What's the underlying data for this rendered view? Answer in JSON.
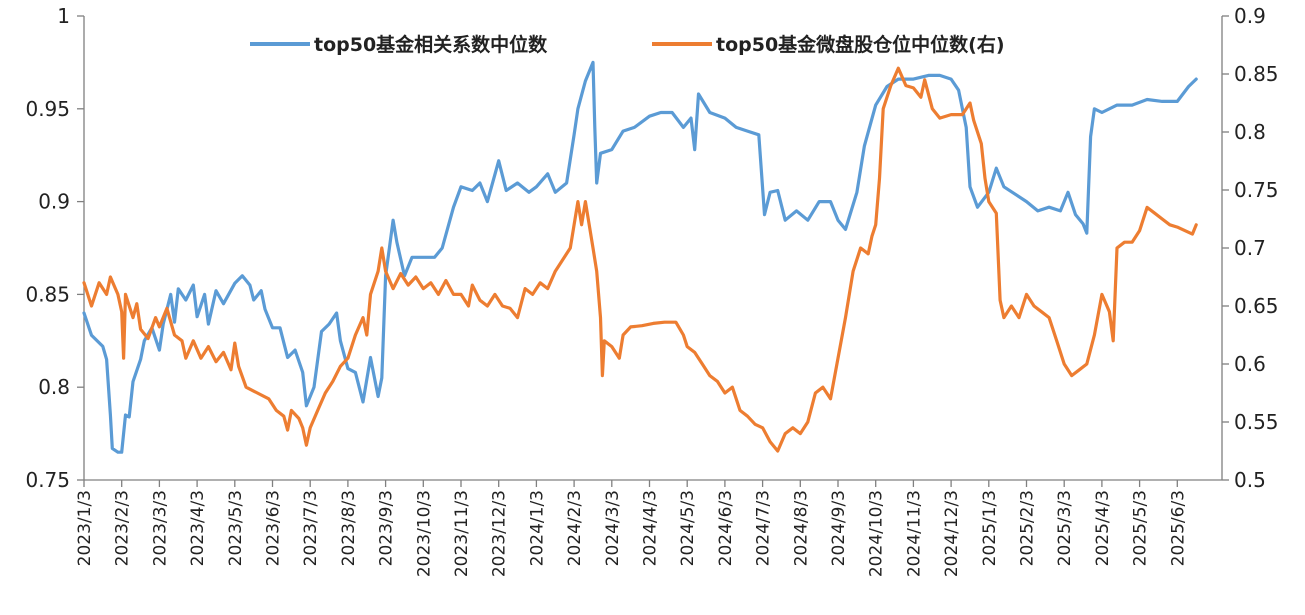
{
  "chart_data": {
    "type": "line",
    "colors": {
      "left_series": "#5b9bd5",
      "right_series": "#ed7d31",
      "axis": "#808080"
    },
    "legend_placement": "top-center",
    "grid": false,
    "y_left": {
      "min": 0.75,
      "max": 1.0,
      "ticks": [
        "0.75",
        "0.8",
        "0.85",
        "0.9",
        "0.95",
        "1"
      ]
    },
    "y_right": {
      "min": 0.5,
      "max": 0.9,
      "ticks": [
        "0.5",
        "0.55",
        "0.6",
        "0.65",
        "0.7",
        "0.75",
        "0.8",
        "0.85",
        "0.9"
      ]
    },
    "x_tick_labels": [
      "2023/1/3",
      "2023/2/3",
      "2023/3/3",
      "2023/4/3",
      "2023/5/3",
      "2023/6/3",
      "2023/7/3",
      "2023/8/3",
      "2023/9/3",
      "2023/10/3",
      "2023/11/3",
      "2023/12/3",
      "2024/1/3",
      "2024/2/3",
      "2024/3/3",
      "2024/4/3",
      "2024/5/3",
      "2024/6/3",
      "2024/7/3",
      "2024/8/3",
      "2024/9/3",
      "2024/10/3",
      "2024/11/3",
      "2024/12/3",
      "2025/1/3",
      "2025/2/3",
      "2025/3/3",
      "2025/4/3",
      "2025/5/3",
      "2025/6/3"
    ],
    "series": [
      {
        "name": "top50基金相关系数中位数",
        "axis": "left",
        "points": [
          [
            0,
            0.84
          ],
          [
            0.2,
            0.828
          ],
          [
            0.5,
            0.822
          ],
          [
            0.6,
            0.815
          ],
          [
            0.7,
            0.785
          ],
          [
            0.75,
            0.767
          ],
          [
            0.9,
            0.765
          ],
          [
            1.0,
            0.765
          ],
          [
            1.1,
            0.785
          ],
          [
            1.2,
            0.784
          ],
          [
            1.3,
            0.803
          ],
          [
            1.5,
            0.815
          ],
          [
            1.6,
            0.825
          ],
          [
            1.8,
            0.832
          ],
          [
            2.0,
            0.82
          ],
          [
            2.1,
            0.834
          ],
          [
            2.3,
            0.85
          ],
          [
            2.4,
            0.835
          ],
          [
            2.5,
            0.853
          ],
          [
            2.7,
            0.847
          ],
          [
            2.9,
            0.855
          ],
          [
            3.0,
            0.838
          ],
          [
            3.2,
            0.85
          ],
          [
            3.3,
            0.834
          ],
          [
            3.5,
            0.852
          ],
          [
            3.7,
            0.845
          ],
          [
            4.0,
            0.856
          ],
          [
            4.2,
            0.86
          ],
          [
            4.4,
            0.855
          ],
          [
            4.5,
            0.847
          ],
          [
            4.7,
            0.852
          ],
          [
            4.8,
            0.842
          ],
          [
            5.0,
            0.832
          ],
          [
            5.2,
            0.832
          ],
          [
            5.4,
            0.816
          ],
          [
            5.6,
            0.82
          ],
          [
            5.8,
            0.808
          ],
          [
            5.9,
            0.79
          ],
          [
            6.1,
            0.8
          ],
          [
            6.3,
            0.83
          ],
          [
            6.5,
            0.834
          ],
          [
            6.7,
            0.84
          ],
          [
            6.8,
            0.825
          ],
          [
            7.0,
            0.81
          ],
          [
            7.2,
            0.808
          ],
          [
            7.4,
            0.792
          ],
          [
            7.6,
            0.816
          ],
          [
            7.8,
            0.795
          ],
          [
            7.9,
            0.805
          ],
          [
            8.0,
            0.86
          ],
          [
            8.1,
            0.875
          ],
          [
            8.2,
            0.89
          ],
          [
            8.3,
            0.878
          ],
          [
            8.5,
            0.86
          ],
          [
            8.7,
            0.87
          ],
          [
            9.0,
            0.87
          ],
          [
            9.3,
            0.87
          ],
          [
            9.5,
            0.875
          ],
          [
            9.8,
            0.897
          ],
          [
            10.0,
            0.908
          ],
          [
            10.3,
            0.906
          ],
          [
            10.5,
            0.91
          ],
          [
            10.7,
            0.9
          ],
          [
            11.0,
            0.922
          ],
          [
            11.2,
            0.906
          ],
          [
            11.5,
            0.91
          ],
          [
            11.8,
            0.905
          ],
          [
            12.0,
            0.908
          ],
          [
            12.3,
            0.915
          ],
          [
            12.5,
            0.905
          ],
          [
            12.8,
            0.91
          ],
          [
            13.0,
            0.936
          ],
          [
            13.1,
            0.95
          ],
          [
            13.3,
            0.965
          ],
          [
            13.5,
            0.975
          ],
          [
            13.55,
            0.94
          ],
          [
            13.6,
            0.91
          ],
          [
            13.7,
            0.926
          ],
          [
            14.0,
            0.928
          ],
          [
            14.3,
            0.938
          ],
          [
            14.6,
            0.94
          ],
          [
            15.0,
            0.946
          ],
          [
            15.3,
            0.948
          ],
          [
            15.6,
            0.948
          ],
          [
            15.9,
            0.94
          ],
          [
            16.1,
            0.945
          ],
          [
            16.2,
            0.928
          ],
          [
            16.3,
            0.958
          ],
          [
            16.6,
            0.948
          ],
          [
            17.0,
            0.945
          ],
          [
            17.3,
            0.94
          ],
          [
            17.6,
            0.938
          ],
          [
            17.9,
            0.936
          ],
          [
            18.05,
            0.893
          ],
          [
            18.2,
            0.905
          ],
          [
            18.4,
            0.906
          ],
          [
            18.6,
            0.89
          ],
          [
            18.9,
            0.895
          ],
          [
            19.2,
            0.89
          ],
          [
            19.5,
            0.9
          ],
          [
            19.8,
            0.9
          ],
          [
            20.0,
            0.89
          ],
          [
            20.2,
            0.885
          ],
          [
            20.5,
            0.905
          ],
          [
            20.7,
            0.93
          ],
          [
            21.0,
            0.952
          ],
          [
            21.3,
            0.962
          ],
          [
            21.6,
            0.966
          ],
          [
            22.0,
            0.966
          ],
          [
            22.4,
            0.968
          ],
          [
            22.7,
            0.968
          ],
          [
            23.0,
            0.966
          ],
          [
            23.2,
            0.96
          ],
          [
            23.4,
            0.94
          ],
          [
            23.5,
            0.908
          ],
          [
            23.7,
            0.897
          ],
          [
            24.0,
            0.905
          ],
          [
            24.2,
            0.918
          ],
          [
            24.4,
            0.908
          ],
          [
            24.7,
            0.904
          ],
          [
            25.0,
            0.9
          ],
          [
            25.3,
            0.895
          ],
          [
            25.6,
            0.897
          ],
          [
            25.9,
            0.895
          ],
          [
            26.1,
            0.905
          ],
          [
            26.3,
            0.893
          ],
          [
            26.5,
            0.888
          ],
          [
            26.6,
            0.883
          ],
          [
            26.7,
            0.935
          ],
          [
            26.8,
            0.95
          ],
          [
            27.0,
            0.948
          ],
          [
            27.4,
            0.952
          ],
          [
            27.8,
            0.952
          ],
          [
            28.2,
            0.955
          ],
          [
            28.6,
            0.954
          ],
          [
            29.0,
            0.954
          ],
          [
            29.3,
            0.962
          ],
          [
            29.5,
            0.966
          ]
        ]
      },
      {
        "name": "top50基金微盘股仓位中位数(右)",
        "axis": "right",
        "points": [
          [
            0,
            0.67
          ],
          [
            0.2,
            0.65
          ],
          [
            0.4,
            0.67
          ],
          [
            0.6,
            0.66
          ],
          [
            0.7,
            0.675
          ],
          [
            0.9,
            0.66
          ],
          [
            1.0,
            0.645
          ],
          [
            1.05,
            0.605
          ],
          [
            1.1,
            0.66
          ],
          [
            1.3,
            0.64
          ],
          [
            1.4,
            0.652
          ],
          [
            1.5,
            0.63
          ],
          [
            1.7,
            0.622
          ],
          [
            1.9,
            0.64
          ],
          [
            2.0,
            0.632
          ],
          [
            2.2,
            0.648
          ],
          [
            2.4,
            0.625
          ],
          [
            2.6,
            0.62
          ],
          [
            2.7,
            0.605
          ],
          [
            2.9,
            0.62
          ],
          [
            3.1,
            0.605
          ],
          [
            3.3,
            0.615
          ],
          [
            3.5,
            0.602
          ],
          [
            3.7,
            0.61
          ],
          [
            3.9,
            0.595
          ],
          [
            4.0,
            0.618
          ],
          [
            4.1,
            0.598
          ],
          [
            4.3,
            0.58
          ],
          [
            4.6,
            0.575
          ],
          [
            4.9,
            0.57
          ],
          [
            5.1,
            0.56
          ],
          [
            5.3,
            0.555
          ],
          [
            5.4,
            0.543
          ],
          [
            5.5,
            0.56
          ],
          [
            5.7,
            0.553
          ],
          [
            5.8,
            0.545
          ],
          [
            5.9,
            0.53
          ],
          [
            6.0,
            0.545
          ],
          [
            6.2,
            0.56
          ],
          [
            6.4,
            0.575
          ],
          [
            6.6,
            0.585
          ],
          [
            6.8,
            0.598
          ],
          [
            7.0,
            0.605
          ],
          [
            7.2,
            0.625
          ],
          [
            7.4,
            0.64
          ],
          [
            7.5,
            0.625
          ],
          [
            7.6,
            0.66
          ],
          [
            7.8,
            0.68
          ],
          [
            7.9,
            0.7
          ],
          [
            8.0,
            0.68
          ],
          [
            8.2,
            0.665
          ],
          [
            8.4,
            0.678
          ],
          [
            8.6,
            0.668
          ],
          [
            8.8,
            0.675
          ],
          [
            9.0,
            0.665
          ],
          [
            9.2,
            0.67
          ],
          [
            9.4,
            0.66
          ],
          [
            9.6,
            0.672
          ],
          [
            9.8,
            0.66
          ],
          [
            10.0,
            0.66
          ],
          [
            10.2,
            0.65
          ],
          [
            10.3,
            0.668
          ],
          [
            10.5,
            0.655
          ],
          [
            10.7,
            0.65
          ],
          [
            10.9,
            0.66
          ],
          [
            11.1,
            0.65
          ],
          [
            11.3,
            0.648
          ],
          [
            11.5,
            0.64
          ],
          [
            11.7,
            0.665
          ],
          [
            11.9,
            0.66
          ],
          [
            12.1,
            0.67
          ],
          [
            12.3,
            0.665
          ],
          [
            12.5,
            0.68
          ],
          [
            12.7,
            0.69
          ],
          [
            12.9,
            0.7
          ],
          [
            13.0,
            0.72
          ],
          [
            13.1,
            0.74
          ],
          [
            13.2,
            0.72
          ],
          [
            13.3,
            0.74
          ],
          [
            13.4,
            0.72
          ],
          [
            13.5,
            0.7
          ],
          [
            13.6,
            0.68
          ],
          [
            13.7,
            0.64
          ],
          [
            13.75,
            0.59
          ],
          [
            13.8,
            0.62
          ],
          [
            14.0,
            0.615
          ],
          [
            14.2,
            0.605
          ],
          [
            14.3,
            0.625
          ],
          [
            14.5,
            0.632
          ],
          [
            14.8,
            0.633
          ],
          [
            15.1,
            0.635
          ],
          [
            15.4,
            0.636
          ],
          [
            15.7,
            0.636
          ],
          [
            15.9,
            0.625
          ],
          [
            16.0,
            0.615
          ],
          [
            16.2,
            0.61
          ],
          [
            16.4,
            0.6
          ],
          [
            16.6,
            0.59
          ],
          [
            16.8,
            0.585
          ],
          [
            17.0,
            0.575
          ],
          [
            17.2,
            0.58
          ],
          [
            17.4,
            0.56
          ],
          [
            17.6,
            0.555
          ],
          [
            17.8,
            0.548
          ],
          [
            18.0,
            0.545
          ],
          [
            18.2,
            0.533
          ],
          [
            18.4,
            0.525
          ],
          [
            18.6,
            0.54
          ],
          [
            18.8,
            0.545
          ],
          [
            19.0,
            0.54
          ],
          [
            19.2,
            0.55
          ],
          [
            19.4,
            0.575
          ],
          [
            19.6,
            0.58
          ],
          [
            19.8,
            0.57
          ],
          [
            20.0,
            0.605
          ],
          [
            20.2,
            0.64
          ],
          [
            20.4,
            0.68
          ],
          [
            20.6,
            0.7
          ],
          [
            20.8,
            0.695
          ],
          [
            20.9,
            0.71
          ],
          [
            21.0,
            0.72
          ],
          [
            21.1,
            0.76
          ],
          [
            21.2,
            0.82
          ],
          [
            21.4,
            0.84
          ],
          [
            21.6,
            0.855
          ],
          [
            21.8,
            0.84
          ],
          [
            22.0,
            0.838
          ],
          [
            22.2,
            0.83
          ],
          [
            22.3,
            0.845
          ],
          [
            22.5,
            0.82
          ],
          [
            22.7,
            0.812
          ],
          [
            23.0,
            0.815
          ],
          [
            23.3,
            0.815
          ],
          [
            23.5,
            0.825
          ],
          [
            23.6,
            0.81
          ],
          [
            23.8,
            0.79
          ],
          [
            23.9,
            0.76
          ],
          [
            24.0,
            0.74
          ],
          [
            24.2,
            0.73
          ],
          [
            24.3,
            0.655
          ],
          [
            24.4,
            0.64
          ],
          [
            24.6,
            0.65
          ],
          [
            24.8,
            0.64
          ],
          [
            25.0,
            0.66
          ],
          [
            25.2,
            0.65
          ],
          [
            25.4,
            0.645
          ],
          [
            25.6,
            0.64
          ],
          [
            25.8,
            0.62
          ],
          [
            26.0,
            0.6
          ],
          [
            26.2,
            0.59
          ],
          [
            26.4,
            0.595
          ],
          [
            26.6,
            0.6
          ],
          [
            26.8,
            0.625
          ],
          [
            27.0,
            0.66
          ],
          [
            27.2,
            0.645
          ],
          [
            27.3,
            0.62
          ],
          [
            27.4,
            0.7
          ],
          [
            27.6,
            0.705
          ],
          [
            27.8,
            0.705
          ],
          [
            28.0,
            0.715
          ],
          [
            28.2,
            0.735
          ],
          [
            28.4,
            0.73
          ],
          [
            28.6,
            0.725
          ],
          [
            28.8,
            0.72
          ],
          [
            29.0,
            0.718
          ],
          [
            29.2,
            0.715
          ],
          [
            29.4,
            0.712
          ],
          [
            29.5,
            0.72
          ]
        ]
      }
    ]
  }
}
